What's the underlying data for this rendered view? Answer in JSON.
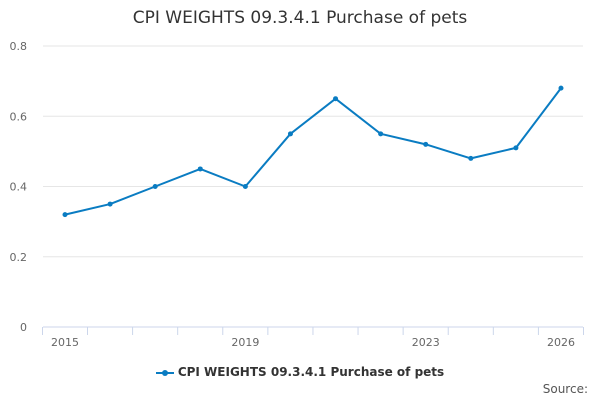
{
  "chart_data": {
    "type": "line",
    "title": "CPI WEIGHTS 09.3.4.1 Purchase of pets",
    "x": [
      2015,
      2016,
      2017,
      2018,
      2019,
      2020,
      2021,
      2022,
      2023,
      2024,
      2025,
      2026
    ],
    "x_tick_labels": [
      "2015",
      "2019",
      "2023",
      "2026"
    ],
    "y_ticks": [
      "0",
      "0.2",
      "0.4",
      "0.6",
      "0.8"
    ],
    "ylim": [
      0,
      0.8
    ],
    "grid": true,
    "legend_position": "bottom",
    "series": [
      {
        "name": "CPI WEIGHTS 09.3.4.1 Purchase of pets",
        "values": [
          0.32,
          0.35,
          0.4,
          0.45,
          0.4,
          0.55,
          0.65,
          0.55,
          0.52,
          0.48,
          0.51,
          0.68
        ],
        "color": "#0a7cc2"
      }
    ]
  },
  "source_label": "Source:"
}
